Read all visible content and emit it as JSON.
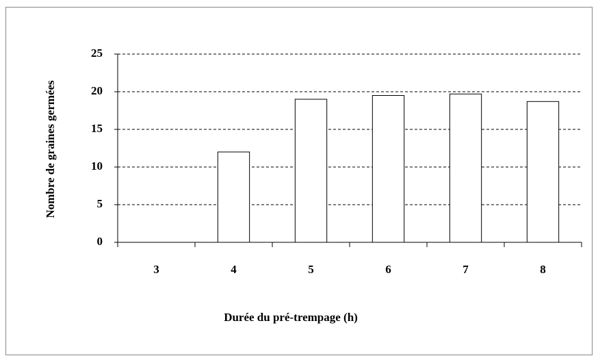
{
  "chart_data": {
    "type": "bar",
    "x_label": "Durée du pré-trempage (h)",
    "y_label": "Nombre de graines germées",
    "categories": [
      "3",
      "4",
      "5",
      "6",
      "7",
      "8"
    ],
    "values": [
      0,
      12,
      19,
      19.5,
      19.7,
      18.7
    ],
    "color": "#ffffff",
    "ylim": [
      0,
      25
    ],
    "yticks": [
      0,
      5,
      10,
      15,
      20,
      25
    ],
    "grid": true
  }
}
